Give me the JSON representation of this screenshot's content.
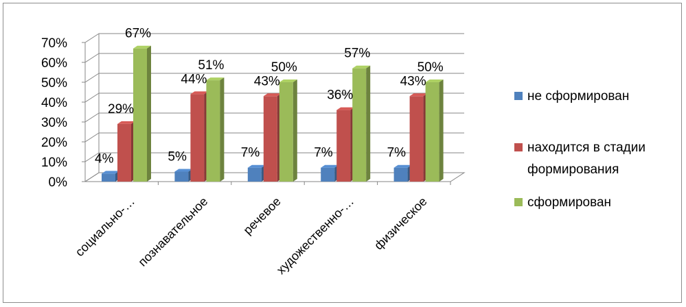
{
  "chart_data": {
    "type": "bar",
    "title": "",
    "xlabel": "",
    "ylabel": "",
    "ylim": [
      0,
      0.7
    ],
    "y_ticks": [
      "0%",
      "10%",
      "20%",
      "30%",
      "40%",
      "50%",
      "60%",
      "70%"
    ],
    "categories": [
      "социально-…",
      "познавательное",
      "речевое",
      "художественно-…",
      "физическое"
    ],
    "series": [
      {
        "name": "не сформирован",
        "color": "#4f81bd",
        "values": [
          0.04,
          0.05,
          0.07,
          0.07,
          0.07
        ],
        "labels": [
          "4%",
          "5%",
          "7%",
          "7%",
          "7%"
        ]
      },
      {
        "name": "находится в стадии формирования",
        "color": "#c0504d",
        "values": [
          0.29,
          0.44,
          0.43,
          0.36,
          0.43
        ],
        "labels": [
          "29%",
          "44%",
          "43%",
          "36%",
          "43%"
        ]
      },
      {
        "name": "сформирован",
        "color": "#9bbb59",
        "values": [
          0.67,
          0.51,
          0.5,
          0.57,
          0.5
        ],
        "labels": [
          "67%",
          "51%",
          "50%",
          "57%",
          "50%"
        ]
      }
    ],
    "legend": {
      "placement": "right",
      "lines": [
        [
          "не сформирован"
        ],
        [
          "находится в стадии",
          "формирования"
        ],
        [
          "сформирован"
        ]
      ]
    },
    "grid": true,
    "style": "3d-clustered-column"
  }
}
